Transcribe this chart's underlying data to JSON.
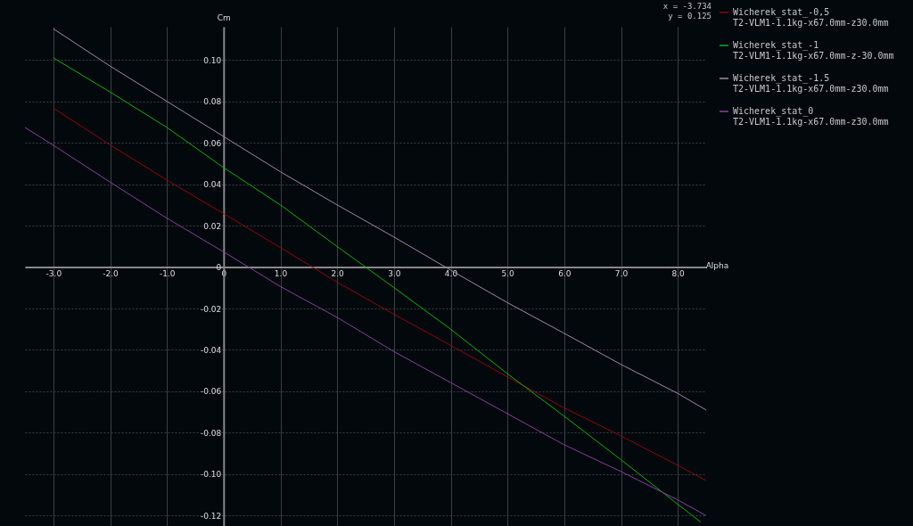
{
  "chart_data": {
    "type": "line",
    "xlabel": "Alpha",
    "ylabel": "Cm",
    "annotations": [
      "x = -3.734",
      "y = 0.125"
    ],
    "x": [
      -3,
      -2,
      -1,
      0,
      1,
      2,
      3,
      4,
      5,
      6,
      7,
      8,
      8.5
    ],
    "series": [
      {
        "name": "Wicherek_stat_-0,5\nT2-VLM1-1.1kg-x67.0mm-z30.0mm",
        "color": "#8b0a0a",
        "values": [
          0.0767,
          0.059,
          0.042,
          0.0258,
          0.0094,
          -0.0073,
          -0.0228,
          -0.0378,
          -0.053,
          -0.068,
          -0.0815,
          -0.0957,
          -0.103
        ]
      },
      {
        "name": "Wicherek_stat_-1\nT2-VLM1-1.1kg-x67.0mm-z-30.0mm",
        "color": "#10b010",
        "x": [
          -3,
          -2,
          -1,
          0,
          1,
          2,
          3,
          4,
          5,
          6,
          7,
          8,
          8.4
        ],
        "values": [
          0.101,
          0.0845,
          0.0674,
          0.048,
          0.03,
          0.0099,
          -0.0099,
          -0.03,
          -0.0515,
          -0.072,
          -0.093,
          -0.1145,
          -0.123
        ]
      },
      {
        "name": "Wicherek_stat_-1.5\nT2-VLM1-1.1kg-x67.0mm-z30.0mm",
        "color": "#a088a8",
        "values": [
          0.115,
          0.097,
          0.08,
          0.063,
          0.046,
          0.03,
          0.0145,
          -0.0015,
          -0.0172,
          -0.032,
          -0.047,
          -0.061,
          -0.069
        ]
      },
      {
        "name": "Wicherek_stat_0\nT2-VLM1-1.1kg-x67.0mm-z30.0mm",
        "color": "#8a3fa0",
        "x": [
          -3.5,
          -3,
          -2,
          -1,
          0,
          1,
          2,
          3,
          4,
          5,
          6,
          7,
          8,
          8.5
        ],
        "values": [
          0.0674,
          0.0588,
          0.041,
          0.0236,
          0.0073,
          -0.0094,
          -0.0243,
          -0.0408,
          -0.0558,
          -0.0708,
          -0.0858,
          -0.0987,
          -0.1124,
          -0.12
        ]
      }
    ],
    "xlim": [
      -3.5,
      8.5
    ],
    "xticks": [
      {
        "value": -3,
        "label": "-3.0"
      },
      {
        "value": -2,
        "label": "-2.0"
      },
      {
        "value": -1,
        "label": "-1.0"
      },
      0,
      {
        "value": 1,
        "label": "1.0"
      },
      {
        "value": 2,
        "label": "2.0"
      },
      {
        "value": 3,
        "label": "3.0"
      },
      {
        "value": 4,
        "label": "4.0"
      },
      {
        "value": 5,
        "label": "5.0"
      },
      {
        "value": 6,
        "label": "6.0"
      },
      {
        "value": 7,
        "label": "7.0"
      },
      {
        "value": 8,
        "label": "8.0"
      }
    ],
    "ylim": [
      -0.125,
      0.116
    ],
    "yticks": [
      {
        "value": -0.12,
        "label": "-0.12"
      },
      {
        "value": -0.1,
        "label": "-0.10"
      },
      {
        "value": -0.08,
        "label": "-0.08"
      },
      {
        "value": -0.06,
        "label": "-0.06"
      },
      {
        "value": -0.04,
        "label": "-0.04"
      },
      {
        "value": -0.02,
        "label": "-0.02"
      },
      0,
      {
        "value": 0.02,
        "label": "0.02"
      },
      {
        "value": 0.04,
        "label": "0.04"
      },
      {
        "value": 0.06,
        "label": "0.06"
      },
      {
        "value": 0.08,
        "label": "0.08"
      },
      {
        "value": 0.1,
        "label": "0.10"
      }
    ],
    "grid": true,
    "legend": "right",
    "marker": "none",
    "line_style": "solid"
  }
}
